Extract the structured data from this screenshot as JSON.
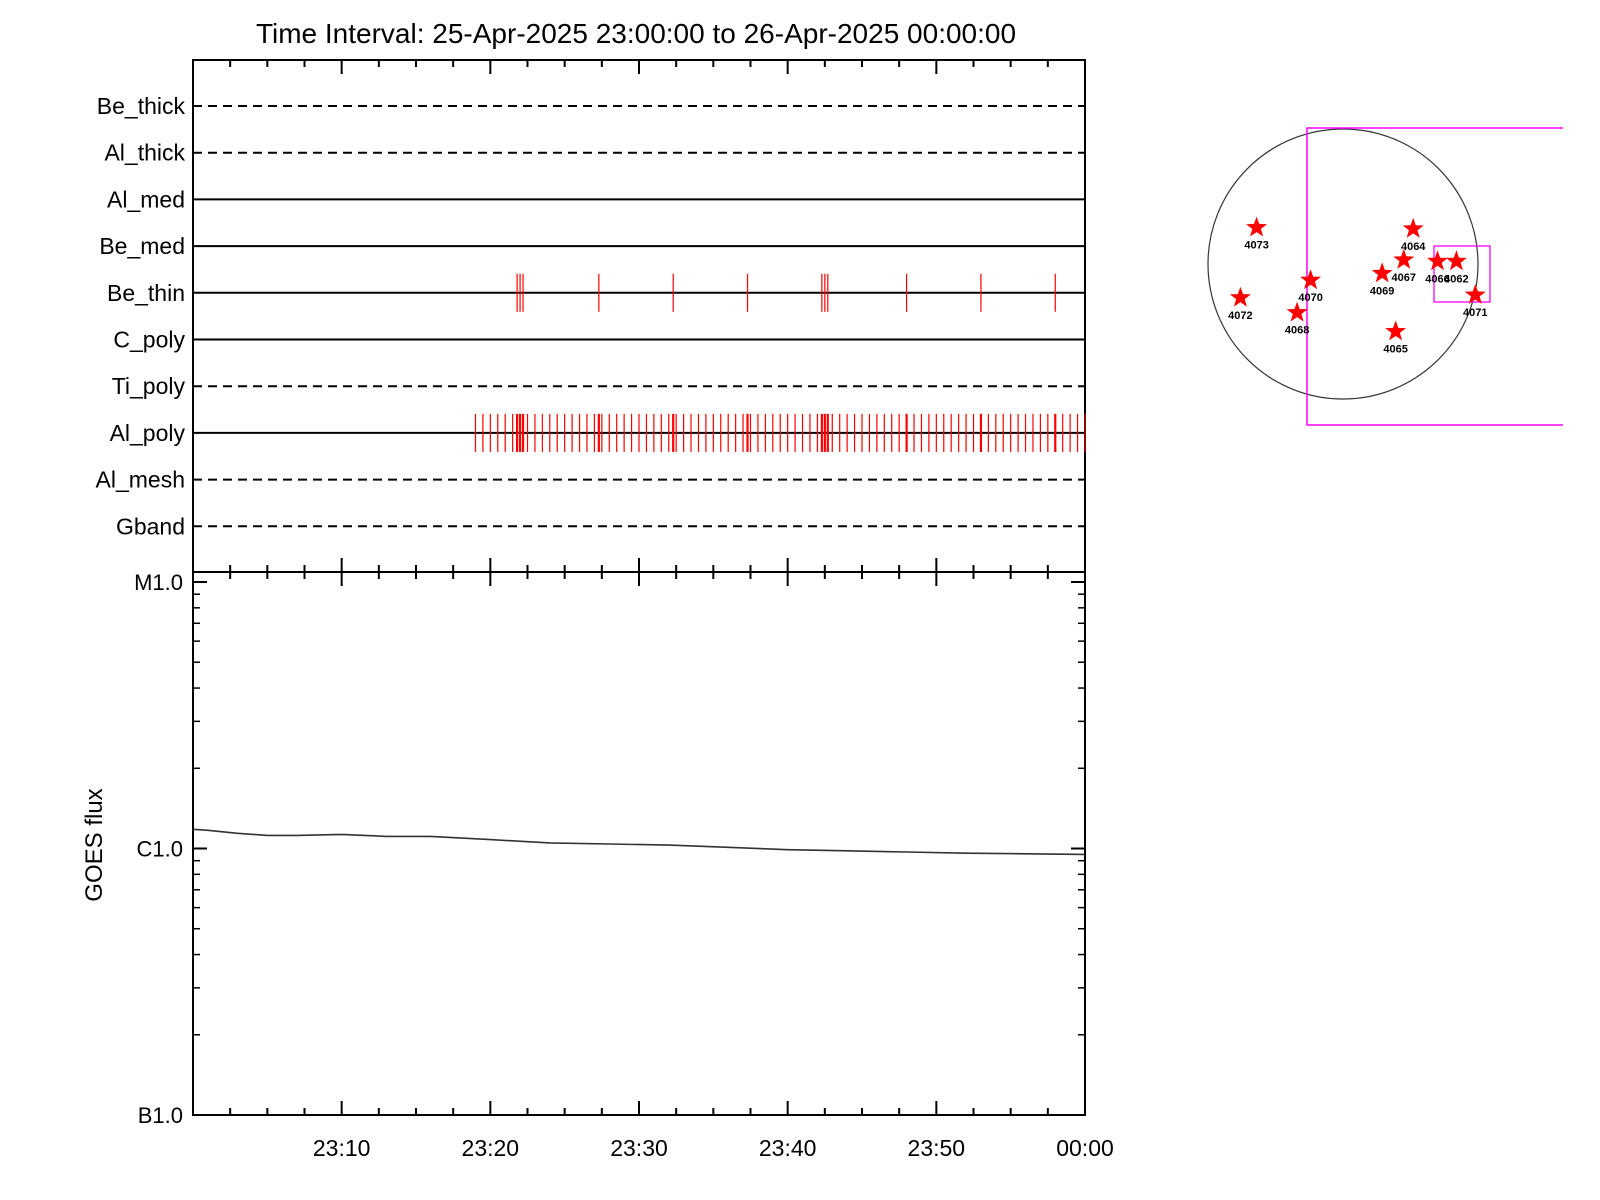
{
  "title": "Time Interval: 25-Apr-2025 23:00:00 to 26-Apr-2025 00:00:00",
  "colors": {
    "axis": "#000000",
    "event_marks": "#ff0000",
    "goes_line": "#333333",
    "fov_box": "#ff00ff",
    "stars": "#ff0000"
  },
  "chart_data": [
    {
      "type": "line",
      "panel": "filter-timeline",
      "x_range_minutes": [
        0,
        60
      ],
      "filters": [
        {
          "name": "Be_thick",
          "style": "dashed"
        },
        {
          "name": "Al_thick",
          "style": "dashed"
        },
        {
          "name": "Al_med",
          "style": "solid"
        },
        {
          "name": "Be_med",
          "style": "solid"
        },
        {
          "name": "Be_thin",
          "style": "solid"
        },
        {
          "name": "C_poly",
          "style": "solid"
        },
        {
          "name": "Ti_poly",
          "style": "dashed"
        },
        {
          "name": "Al_poly",
          "style": "solid"
        },
        {
          "name": "Al_mesh",
          "style": "dashed"
        },
        {
          "name": "Gband",
          "style": "dashed"
        }
      ],
      "events": {
        "Be_thin": [
          21.8,
          22.0,
          22.2,
          27.3,
          32.3,
          37.3,
          42.3,
          42.5,
          42.7,
          48.0,
          53.0,
          58.0
        ],
        "Al_poly_start": 19.0,
        "Al_poly_step": 0.5,
        "Al_poly_end": 60.0
      }
    },
    {
      "type": "line",
      "panel": "goes-flux",
      "ylabel": "GOES flux",
      "y_scale": "log",
      "y_ticks": [
        "B1.0",
        "C1.0",
        "M1.0"
      ],
      "ylim": [
        "B1.0",
        "M1.0"
      ],
      "x_ticks": [
        "23:10",
        "23:20",
        "23:30",
        "23:40",
        "23:50",
        "00:00"
      ],
      "x_range_minutes": [
        0,
        60
      ],
      "series": [
        {
          "x": [
            0,
            1,
            3,
            5,
            7,
            10,
            13,
            16,
            20,
            24,
            28,
            32,
            36,
            40,
            44,
            48,
            52,
            56,
            60
          ],
          "y": [
            1.18e-06,
            1.17e-06,
            1.14e-06,
            1.12e-06,
            1.12e-06,
            1.13e-06,
            1.11e-06,
            1.11e-06,
            1.08e-06,
            1.05e-06,
            1.04e-06,
            1.03e-06,
            1.01e-06,
            9.9e-07,
            9.8e-07,
            9.7e-07,
            9.6e-07,
            9.55e-07,
            9.5e-07
          ]
        }
      ]
    },
    {
      "type": "scatter",
      "panel": "solar-disk-map",
      "active_regions": [
        {
          "label": "4073",
          "x": -0.64,
          "y": 0.27
        },
        {
          "label": "4064",
          "x": 0.52,
          "y": 0.26
        },
        {
          "label": "4067",
          "x": 0.45,
          "y": 0.03
        },
        {
          "label": "4066",
          "x": 0.7,
          "y": 0.02
        },
        {
          "label": "4062",
          "x": 0.84,
          "y": 0.02
        },
        {
          "label": "4069",
          "x": 0.29,
          "y": -0.07
        },
        {
          "label": "4070",
          "x": -0.24,
          "y": -0.12
        },
        {
          "label": "4072",
          "x": -0.76,
          "y": -0.25
        },
        {
          "label": "4068",
          "x": -0.34,
          "y": -0.36
        },
        {
          "label": "4071",
          "x": 0.98,
          "y": -0.23
        },
        {
          "label": "4065",
          "x": 0.39,
          "y": -0.5
        }
      ]
    }
  ]
}
